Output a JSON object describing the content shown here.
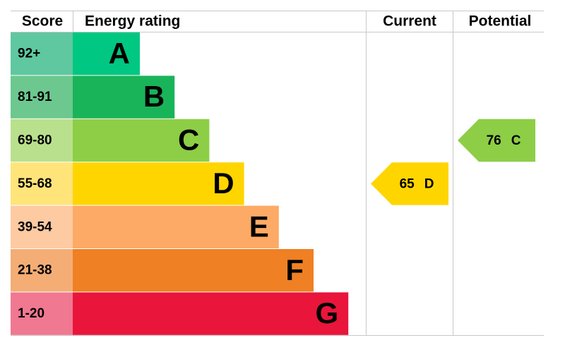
{
  "headers": {
    "score": "Score",
    "rating": "Energy rating",
    "current": "Current",
    "potential": "Potential"
  },
  "bands": [
    {
      "score": "92+",
      "letter": "A",
      "color": "#00c781",
      "score_color": "#5fc8a0"
    },
    {
      "score": "81-91",
      "letter": "B",
      "color": "#19b459",
      "score_color": "#6cc88f"
    },
    {
      "score": "69-80",
      "letter": "C",
      "color": "#8dce46",
      "score_color": "#b9e08c"
    },
    {
      "score": "55-68",
      "letter": "D",
      "color": "#ffd500",
      "score_color": "#ffe47a"
    },
    {
      "score": "39-54",
      "letter": "E",
      "color": "#fcaa65",
      "score_color": "#fdcaa2"
    },
    {
      "score": "21-38",
      "letter": "F",
      "color": "#ef8023",
      "score_color": "#f4ad75"
    },
    {
      "score": "1-20",
      "letter": "G",
      "color": "#e9153b",
      "score_color": "#f07891"
    }
  ],
  "current": {
    "value": 65,
    "letter": "D"
  },
  "potential": {
    "value": 76,
    "letter": "C"
  }
}
